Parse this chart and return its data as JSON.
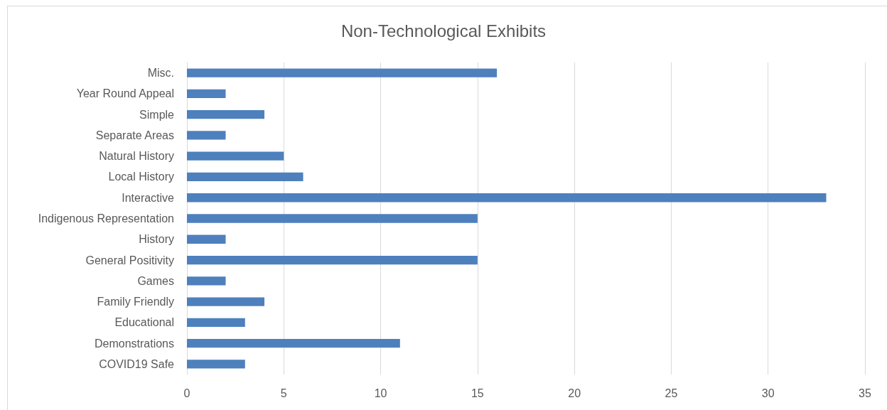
{
  "chart_data": {
    "type": "bar",
    "title": "Non-Technological Exhibits",
    "orientation": "horizontal",
    "categories": [
      "Misc.",
      "Year Round Appeal",
      "Simple",
      "Separate Areas",
      "Natural History",
      "Local History",
      "Interactive",
      "Indigenous Representation",
      "History",
      "General Positivity",
      "Games",
      "Family Friendly",
      "Educational",
      "Demonstrations",
      "COVID19 Safe"
    ],
    "values": [
      16,
      2,
      4,
      2,
      5,
      6,
      33,
      15,
      2,
      15,
      2,
      4,
      3,
      11,
      3
    ],
    "color": "#4e80bd",
    "xlim": [
      0,
      35
    ],
    "xticks": [
      0,
      5,
      10,
      15,
      20,
      25,
      30,
      35
    ],
    "grid": "x"
  }
}
